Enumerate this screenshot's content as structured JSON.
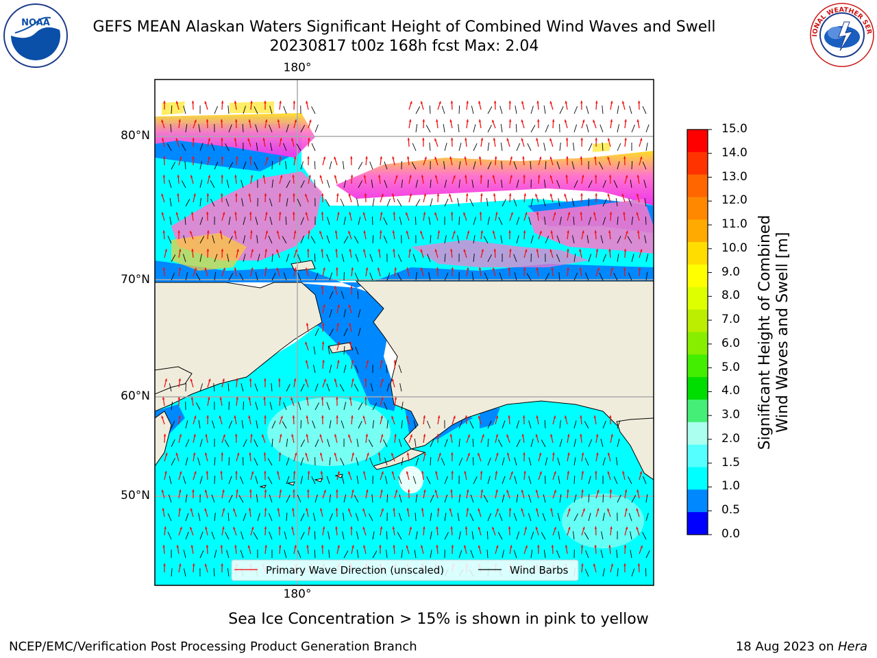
{
  "header": {
    "title_line1": "GEFS MEAN Alaskan Waters Significant Height of Combined Wind Waves and Swell",
    "title_line2": "20230817 t00z 168h fcst   Max: 2.04"
  },
  "logos": {
    "left": {
      "icon": "noaa-logo-icon",
      "text": "NOAA"
    },
    "right": {
      "icon": "nws-logo-icon",
      "text": "NATIONAL WEATHER SERVICE"
    }
  },
  "map": {
    "lon_label_top": "180°",
    "lon_label_bottom": "180°",
    "lat_labels": [
      "80°N",
      "70°N",
      "60°N",
      "50°N"
    ],
    "land_color": "#efecdc",
    "legend": {
      "wave_label": "Primary Wave Direction (unscaled)",
      "wind_label": "Wind Barbs"
    }
  },
  "colorbar": {
    "label_line1": "Significant Height of Combined",
    "label_line2": "Wind Waves and Swell [m]",
    "ticks": [
      "15.0",
      "14.0",
      "13.0",
      "12.0",
      "11.0",
      "10.0",
      "9.0",
      "8.0",
      "7.0",
      "6.0",
      "5.0",
      "4.0",
      "3.0",
      "2.0",
      "1.5",
      "1.0",
      "0.5",
      "0.0"
    ],
    "colors": [
      "#ff0000",
      "#ff3300",
      "#ff6600",
      "#ff8800",
      "#ffaa00",
      "#ffdd00",
      "#ffff00",
      "#ddff00",
      "#bbee00",
      "#88ee00",
      "#44ee00",
      "#00dd00",
      "#44ee77",
      "#aaffee",
      "#55ffff",
      "#00ffff",
      "#0088ff",
      "#0000ff"
    ]
  },
  "ice_note": "Sea Ice Concentration > 15% is shown in pink to yellow",
  "footer": {
    "left": "NCEP/EMC/Verification Post Processing Product Generation Branch",
    "right_date": "18 Aug 2023 on",
    "right_machine": "Hera"
  }
}
